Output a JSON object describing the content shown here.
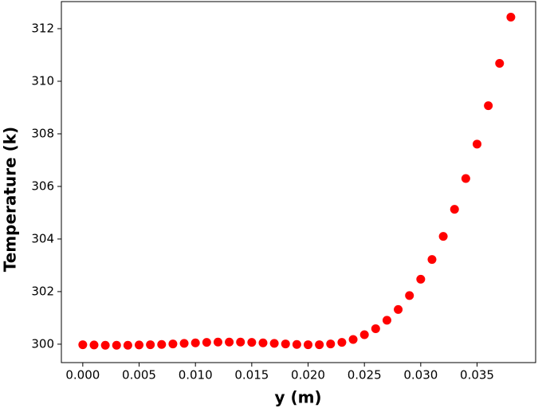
{
  "chart_data": {
    "type": "scatter",
    "x_label": "y (m)",
    "y_label": "Temperature (k)",
    "series": [
      {
        "color": "#ff0000",
        "x": [
          0,
          0.001,
          0.002,
          0.003,
          0.004,
          0.005,
          0.006,
          0.007,
          0.008,
          0.009,
          0.01,
          0.011,
          0.012,
          0.013,
          0.014,
          0.015,
          0.016,
          0.017,
          0.018,
          0.019,
          0.02,
          0.021,
          0.022,
          0.023,
          0.024,
          0.025,
          0.026,
          0.027,
          0.028,
          0.029,
          0.03,
          0.031,
          0.032,
          0.033,
          0.034,
          0.035,
          0.036,
          0.037,
          0.038
        ],
        "values": [
          299.98,
          299.97,
          299.96,
          299.96,
          299.96,
          299.97,
          299.98,
          299.99,
          300.01,
          300.03,
          300.05,
          300.07,
          300.08,
          300.08,
          300.08,
          300.07,
          300.05,
          300.03,
          300.01,
          299.99,
          299.98,
          299.98,
          300.01,
          300.07,
          300.18,
          300.36,
          300.59,
          300.91,
          301.32,
          301.85,
          302.47,
          303.22,
          304.1,
          305.13,
          306.3,
          307.61,
          309.07,
          310.68,
          312.44
        ]
      }
    ],
    "xlim": [
      -0.0019,
      0.0402
    ],
    "ylim": [
      299.3,
      313.03
    ],
    "xticks": [
      {
        "value": 0,
        "label": "0.000"
      },
      {
        "value": 0.005,
        "label": "0.005"
      },
      {
        "value": 0.01,
        "label": "0.010"
      },
      {
        "value": 0.015,
        "label": "0.015"
      },
      {
        "value": 0.02,
        "label": "0.020"
      },
      {
        "value": 0.025,
        "label": "0.025"
      },
      {
        "value": 0.03,
        "label": "0.030"
      },
      {
        "value": 0.035,
        "label": "0.035"
      }
    ],
    "yticks": [
      300,
      302,
      304,
      306,
      308,
      310,
      312
    ]
  }
}
